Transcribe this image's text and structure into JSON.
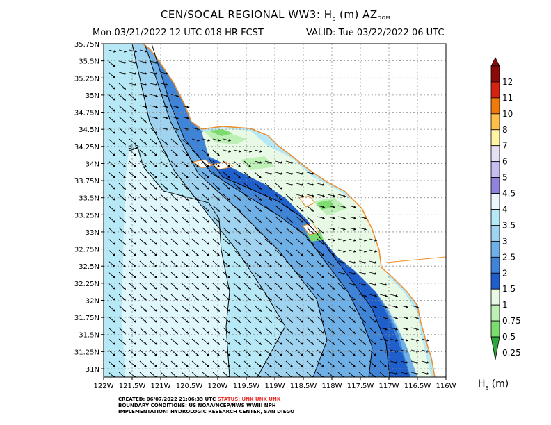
{
  "header": {
    "title_main": "CEN/SOCAL REGIONAL WW3: H",
    "title_sub_s": "s",
    "title_mid": " (m) AZ",
    "title_sub_dom": "DOM",
    "subtitle_left": "Mon 03/21/2022 12 UTC 018 HR FCST",
    "subtitle_right": "VALID: Tue 03/22/2022 06 UTC"
  },
  "map": {
    "lat_labels": [
      "35.75N",
      "35.5N",
      "35.25N",
      "35N",
      "34.75N",
      "34.5N",
      "34.25N",
      "34N",
      "33.75N",
      "33.5N",
      "33.25N",
      "33N",
      "32.75N",
      "32.5N",
      "32.25N",
      "32N",
      "31.75N",
      "31.5N",
      "31.25N",
      "31N"
    ],
    "lon_labels": [
      "122W",
      "121.5W",
      "121W",
      "120.5W",
      "120W",
      "119.5W",
      "119W",
      "118.5W",
      "118W",
      "117.5W",
      "117W",
      "116.5W",
      "116W"
    ],
    "contour_label": "3.5",
    "colors": {
      "c4": "#dff6fb",
      "c35": "#b6e8f5",
      "c3": "#9fd3ef",
      "c25": "#6fb0e6",
      "c2": "#3f84d6",
      "c15": "#1f5fcc",
      "c1": "#e8f9e6",
      "c075": "#bdf0b5",
      "c05": "#7ddc70",
      "coast": "#f28c28"
    }
  },
  "colorbar": {
    "labels": [
      "12",
      "11",
      "10",
      "8",
      "7",
      "6",
      "5",
      "4.5",
      "4",
      "3.5",
      "3",
      "2.5",
      "2",
      "1.5",
      "1",
      "0.75",
      "0.5",
      "0.25"
    ],
    "colors": [
      "#8b0a0a",
      "#d4230f",
      "#f07a0a",
      "#ffc04a",
      "#fff4a6",
      "#e6e0f5",
      "#c7bef0",
      "#8e84de",
      "#ecf8fd",
      "#b6e8f5",
      "#9fd3ef",
      "#6fb0e6",
      "#3f84d6",
      "#1f5fcc",
      "#e8f9e6",
      "#bdf0b5",
      "#7ddc70",
      "#2ca83a"
    ],
    "unit_label": "H",
    "unit_sub": "s",
    "unit_tail": " (m)"
  },
  "footer": {
    "created_prefix": "CREATED: 06/07/2022 21:06:33 UTC ",
    "status": "STATUS: UNK UNK UNK",
    "boundary": "BOUNDARY CONDITIONS: US NOAA/NCEP/NWS WWIII NPH",
    "implementation": "IMPLEMENTATION: HYDROLOGIC RESEARCH CENTER, SAN DIEGO"
  }
}
